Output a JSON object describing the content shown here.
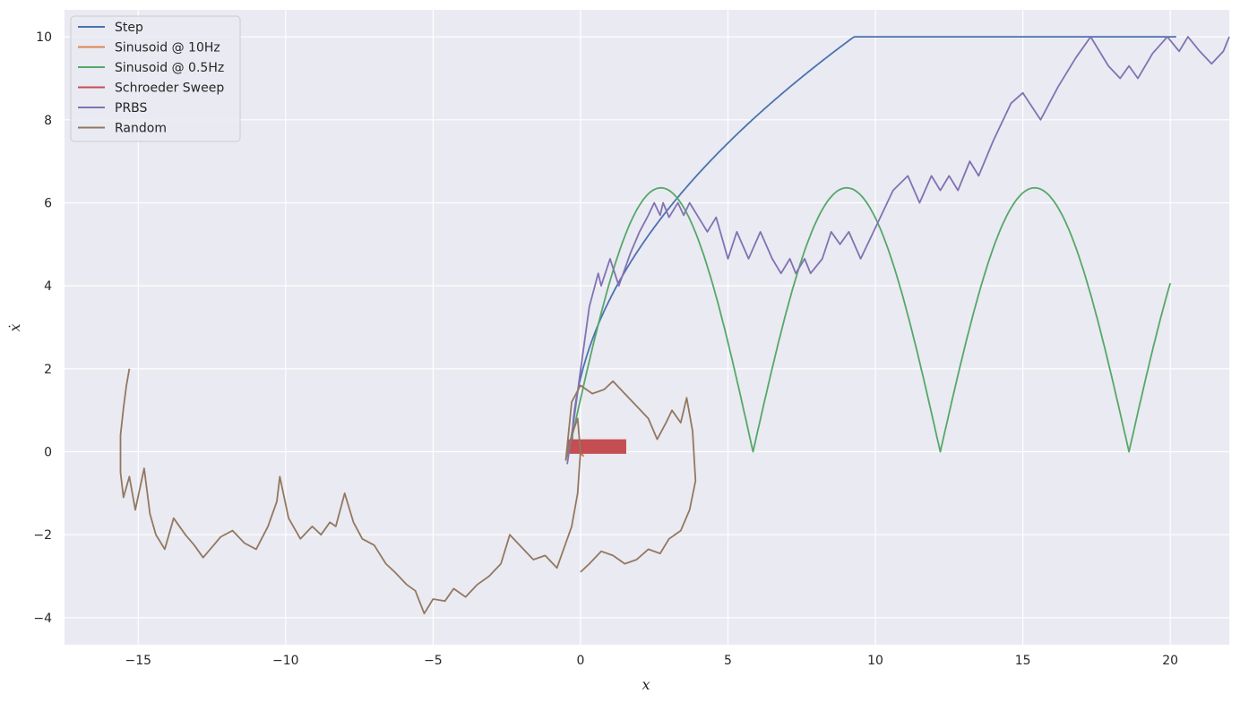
{
  "chart_data": {
    "type": "line",
    "title": "",
    "xlabel": "x",
    "ylabel": "ẋ",
    "xlim": [
      -17.5,
      22.0
    ],
    "ylim": [
      -4.65,
      10.65
    ],
    "xticks": [
      -15,
      -10,
      -5,
      0,
      5,
      10,
      15,
      20
    ],
    "yticks": [
      -4,
      -2,
      0,
      2,
      4,
      6,
      8,
      10
    ],
    "grid": true,
    "legend_position": "top-left",
    "series": [
      {
        "name": "Step",
        "color": "#4c72b0",
        "kind": "sqrt_saturate",
        "params": {
          "x0": -0.3,
          "k": 10.22,
          "x_sat": 9.7,
          "y_max": 10.0,
          "x_end": 20.2
        }
      },
      {
        "name": "Sinusoid @ 10Hz",
        "color": "#dd8452",
        "kind": "points",
        "points": [
          [
            -0.1,
            0.1
          ],
          [
            0.1,
            -0.1
          ],
          [
            -0.1,
            0.0
          ]
        ]
      },
      {
        "name": "Sinusoid @ 0.5Hz",
        "color": "#55a868",
        "kind": "arches",
        "params": {
          "peak": 6.36,
          "arches": [
            [
              -0.4,
              5.85
            ],
            [
              5.85,
              12.2
            ],
            [
              12.2,
              18.6
            ],
            [
              18.6,
              24.95
            ]
          ],
          "x_end": 20.0
        }
      },
      {
        "name": "Schroeder Sweep",
        "color": "#c44e52",
        "kind": "band",
        "params": {
          "x0": -0.45,
          "x1": 1.55,
          "y0": -0.05,
          "y1": 0.3
        }
      },
      {
        "name": "PRBS",
        "color": "#8172b3",
        "kind": "points",
        "points": [
          [
            -0.45,
            -0.3
          ],
          [
            -0.2,
            0.9
          ],
          [
            -0.05,
            1.7
          ],
          [
            0.3,
            3.5
          ],
          [
            0.6,
            4.3
          ],
          [
            0.7,
            4.0
          ],
          [
            1.0,
            4.65
          ],
          [
            1.3,
            4.0
          ],
          [
            1.7,
            4.8
          ],
          [
            2.0,
            5.3
          ],
          [
            2.3,
            5.7
          ],
          [
            2.5,
            6.0
          ],
          [
            2.7,
            5.7
          ],
          [
            2.8,
            6.0
          ],
          [
            3.0,
            5.65
          ],
          [
            3.3,
            6.0
          ],
          [
            3.5,
            5.7
          ],
          [
            3.7,
            6.0
          ],
          [
            4.0,
            5.65
          ],
          [
            4.3,
            5.3
          ],
          [
            4.6,
            5.65
          ],
          [
            5.0,
            4.65
          ],
          [
            5.3,
            5.3
          ],
          [
            5.7,
            4.65
          ],
          [
            6.1,
            5.3
          ],
          [
            6.5,
            4.65
          ],
          [
            6.8,
            4.3
          ],
          [
            7.1,
            4.65
          ],
          [
            7.3,
            4.3
          ],
          [
            7.6,
            4.65
          ],
          [
            7.8,
            4.3
          ],
          [
            8.2,
            4.65
          ],
          [
            8.5,
            5.3
          ],
          [
            8.8,
            5.0
          ],
          [
            9.1,
            5.3
          ],
          [
            9.5,
            4.65
          ],
          [
            10.0,
            5.4
          ],
          [
            10.6,
            6.3
          ],
          [
            11.1,
            6.65
          ],
          [
            11.5,
            6.0
          ],
          [
            11.9,
            6.65
          ],
          [
            12.2,
            6.3
          ],
          [
            12.5,
            6.65
          ],
          [
            12.8,
            6.3
          ],
          [
            13.2,
            7.0
          ],
          [
            13.5,
            6.65
          ],
          [
            14.0,
            7.5
          ],
          [
            14.6,
            8.4
          ],
          [
            15.0,
            8.65
          ],
          [
            15.6,
            8.0
          ],
          [
            16.2,
            8.8
          ],
          [
            16.8,
            9.5
          ],
          [
            17.3,
            10.0
          ],
          [
            17.9,
            9.3
          ],
          [
            18.3,
            9.0
          ],
          [
            18.6,
            9.3
          ],
          [
            18.9,
            9.0
          ],
          [
            19.4,
            9.6
          ],
          [
            19.9,
            10.0
          ],
          [
            20.3,
            9.65
          ],
          [
            20.6,
            10.0
          ],
          [
            21.0,
            9.65
          ],
          [
            21.4,
            9.35
          ],
          [
            21.8,
            9.65
          ],
          [
            22.0,
            10.0
          ]
        ]
      },
      {
        "name": "Random",
        "color": "#937860",
        "kind": "points",
        "points": [
          [
            -15.3,
            2.0
          ],
          [
            -15.4,
            1.6
          ],
          [
            -15.5,
            1.05
          ],
          [
            -15.6,
            0.4
          ],
          [
            -15.6,
            -0.5
          ],
          [
            -15.5,
            -1.1
          ],
          [
            -15.3,
            -0.6
          ],
          [
            -15.1,
            -1.4
          ],
          [
            -14.8,
            -0.4
          ],
          [
            -14.6,
            -1.5
          ],
          [
            -14.4,
            -2.0
          ],
          [
            -14.1,
            -2.35
          ],
          [
            -13.8,
            -1.6
          ],
          [
            -13.4,
            -2.0
          ],
          [
            -13.1,
            -2.25
          ],
          [
            -12.8,
            -2.55
          ],
          [
            -12.5,
            -2.3
          ],
          [
            -12.2,
            -2.05
          ],
          [
            -11.8,
            -1.9
          ],
          [
            -11.4,
            -2.2
          ],
          [
            -11.0,
            -2.35
          ],
          [
            -10.6,
            -1.8
          ],
          [
            -10.3,
            -1.2
          ],
          [
            -10.2,
            -0.6
          ],
          [
            -9.9,
            -1.6
          ],
          [
            -9.5,
            -2.1
          ],
          [
            -9.1,
            -1.8
          ],
          [
            -8.8,
            -2.0
          ],
          [
            -8.5,
            -1.7
          ],
          [
            -8.3,
            -1.8
          ],
          [
            -8.0,
            -1.0
          ],
          [
            -7.7,
            -1.7
          ],
          [
            -7.4,
            -2.1
          ],
          [
            -7.0,
            -2.25
          ],
          [
            -6.6,
            -2.7
          ],
          [
            -6.3,
            -2.9
          ],
          [
            -5.9,
            -3.2
          ],
          [
            -5.6,
            -3.35
          ],
          [
            -5.3,
            -3.9
          ],
          [
            -5.0,
            -3.55
          ],
          [
            -4.6,
            -3.6
          ],
          [
            -4.3,
            -3.3
          ],
          [
            -3.9,
            -3.5
          ],
          [
            -3.5,
            -3.2
          ],
          [
            -3.1,
            -3.0
          ],
          [
            -2.7,
            -2.7
          ],
          [
            -2.4,
            -2.0
          ],
          [
            -2.0,
            -2.3
          ],
          [
            -1.6,
            -2.6
          ],
          [
            -1.2,
            -2.5
          ],
          [
            -0.8,
            -2.8
          ],
          [
            -0.5,
            -2.2
          ],
          [
            -0.3,
            -1.8
          ],
          [
            -0.1,
            -1.0
          ],
          [
            0.0,
            0.0
          ],
          [
            -0.1,
            0.8
          ],
          [
            -0.3,
            0.4
          ],
          [
            -0.5,
            -0.2
          ],
          [
            -0.3,
            1.2
          ],
          [
            0.0,
            1.6
          ],
          [
            0.4,
            1.4
          ],
          [
            0.8,
            1.5
          ],
          [
            1.1,
            1.7
          ],
          [
            1.5,
            1.4
          ],
          [
            1.9,
            1.1
          ],
          [
            2.3,
            0.8
          ],
          [
            2.6,
            0.3
          ],
          [
            2.9,
            0.7
          ],
          [
            3.1,
            1.0
          ],
          [
            3.4,
            0.7
          ],
          [
            3.6,
            1.3
          ],
          [
            3.8,
            0.5
          ],
          [
            3.9,
            -0.7
          ],
          [
            3.7,
            -1.4
          ],
          [
            3.4,
            -1.9
          ],
          [
            3.0,
            -2.1
          ],
          [
            2.7,
            -2.45
          ],
          [
            2.3,
            -2.35
          ],
          [
            1.9,
            -2.6
          ],
          [
            1.5,
            -2.7
          ],
          [
            1.1,
            -2.5
          ],
          [
            0.7,
            -2.4
          ],
          [
            0.3,
            -2.7
          ],
          [
            0.0,
            -2.9
          ]
        ]
      }
    ]
  }
}
